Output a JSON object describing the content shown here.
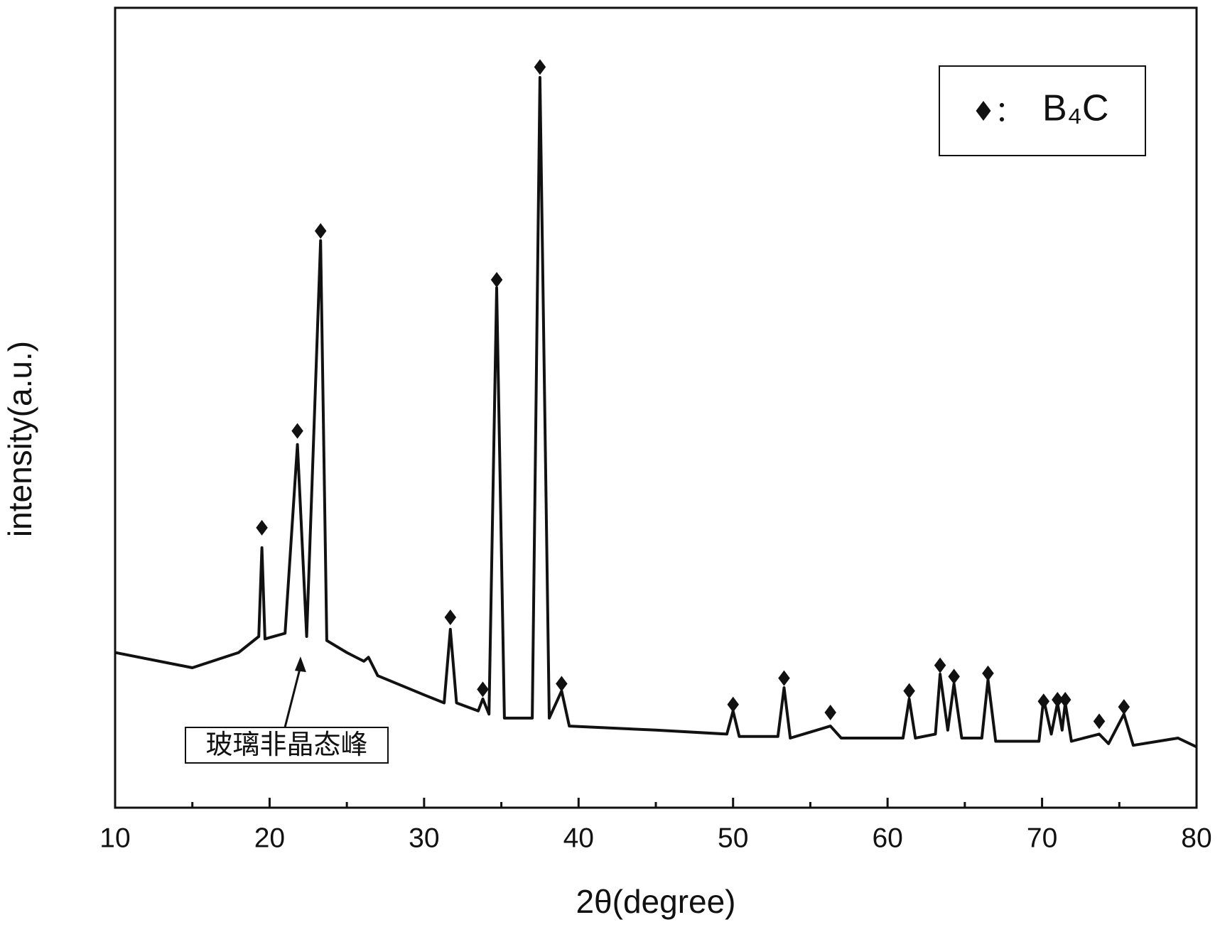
{
  "chart_data": {
    "type": "line",
    "xlabel": "2θ(degree)",
    "ylabel": "intensity(a.u.)",
    "xlim": [
      10,
      80
    ],
    "xticks": [
      10,
      20,
      30,
      40,
      50,
      60,
      70,
      80
    ],
    "xminorticks": [
      15,
      25,
      35,
      45,
      55,
      65,
      75
    ],
    "ylim": [
      0,
      100
    ],
    "series": [
      {
        "color": "#111111",
        "x": [
          10,
          15,
          18,
          19.3,
          19.5,
          19.7,
          21,
          21.8,
          22.4,
          23.3,
          23.7,
          25,
          26.1,
          26.4,
          27,
          30,
          31.3,
          31.7,
          32.1,
          33.5,
          33.8,
          34.2,
          34.7,
          35.2,
          37,
          37.5,
          38.1,
          38.9,
          39.4,
          45,
          49.6,
          50,
          50.4,
          52.9,
          53.3,
          53.7,
          56.3,
          57,
          61,
          61.4,
          61.8,
          63.1,
          63.4,
          63.9,
          64.3,
          64.8,
          66.1,
          66.5,
          67,
          69.8,
          70.1,
          70.6,
          71,
          71.3,
          71.5,
          71.9,
          73.7,
          74.3,
          75.3,
          75.9,
          78.8,
          80
        ],
        "values": [
          19.4,
          17.5,
          19.4,
          21.4,
          32.5,
          21.1,
          21.8,
          45.4,
          21.4,
          70.9,
          20.9,
          19.4,
          18.3,
          18.8,
          16.5,
          14.1,
          13.1,
          22.3,
          13.1,
          12.1,
          13.6,
          11.7,
          65.0,
          11.2,
          11.2,
          91.3,
          11.2,
          14.6,
          10.2,
          9.7,
          9.2,
          12.1,
          8.9,
          8.9,
          15.0,
          8.7,
          10.2,
          8.7,
          8.7,
          13.6,
          8.7,
          9.2,
          16.7,
          9.7,
          15.5,
          8.7,
          8.7,
          16.0,
          8.3,
          8.3,
          13.6,
          9.2,
          13.1,
          9.7,
          13.1,
          8.3,
          9.2,
          8.0,
          11.7,
          7.8,
          8.7,
          7.6
        ]
      },
      {
        "name": "B₄C",
        "color": "#111111",
        "marker": "diamond",
        "x": [
          19.5,
          21.8,
          23.3,
          31.7,
          33.8,
          34.7,
          37.5,
          38.9,
          50,
          53.3,
          56.3,
          61.4,
          63.4,
          64.3,
          66.5,
          70.1,
          71,
          71.5,
          73.7,
          75.3
        ],
        "values": [
          35.0,
          47.1,
          72.1,
          23.8,
          14.8,
          66.0,
          92.6,
          15.5,
          12.9,
          16.2,
          11.9,
          14.6,
          17.8,
          16.4,
          16.8,
          13.3,
          13.5,
          13.5,
          10.8,
          12.6
        ]
      }
    ],
    "legend_separator": "：",
    "legend": "upper right",
    "annotations": [
      {
        "text": "玻璃非晶态峰",
        "x": 22,
        "y": 18.9
      }
    ]
  }
}
